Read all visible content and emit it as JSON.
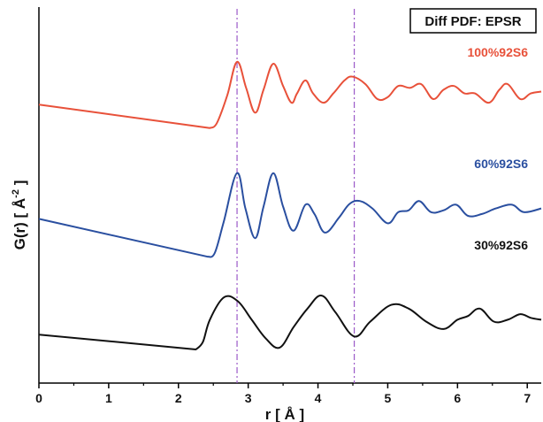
{
  "chart_data": {
    "type": "line",
    "title": "Diff PDF: EPSR",
    "xlabel_parts": {
      "main": "r [ Å ]"
    },
    "ylabel_parts": {
      "main": "G(r) [ Å",
      "sup": "-2",
      "end": " ]"
    },
    "xlim": [
      0,
      7.2
    ],
    "x_ticks": [
      0,
      1,
      2,
      3,
      4,
      5,
      6,
      7
    ],
    "grid": false,
    "vlines": [
      2.84,
      4.52
    ],
    "vline_color": "#9b59c8",
    "series": [
      {
        "name": "100%92S6",
        "color": "#e8513a",
        "points": [
          [
            0,
            0.6
          ],
          [
            2.45,
            1.23
          ],
          [
            2.55,
            1.1
          ],
          [
            2.7,
            0.35
          ],
          [
            2.84,
            -0.55
          ],
          [
            2.97,
            0.15
          ],
          [
            3.1,
            0.82
          ],
          [
            3.22,
            0.2
          ],
          [
            3.36,
            -0.5
          ],
          [
            3.5,
            0.1
          ],
          [
            3.62,
            0.55
          ],
          [
            3.7,
            0.3
          ],
          [
            3.82,
            -0.05
          ],
          [
            3.93,
            0.3
          ],
          [
            4.08,
            0.55
          ],
          [
            4.22,
            0.3
          ],
          [
            4.38,
            -0.05
          ],
          [
            4.5,
            -0.15
          ],
          [
            4.68,
            0.05
          ],
          [
            4.85,
            0.45
          ],
          [
            5.0,
            0.4
          ],
          [
            5.15,
            0.1
          ],
          [
            5.32,
            0.15
          ],
          [
            5.48,
            0.05
          ],
          [
            5.65,
            0.45
          ],
          [
            5.8,
            0.2
          ],
          [
            5.95,
            0.1
          ],
          [
            6.1,
            0.3
          ],
          [
            6.25,
            0.3
          ],
          [
            6.45,
            0.55
          ],
          [
            6.6,
            0.2
          ],
          [
            6.72,
            0.05
          ],
          [
            6.9,
            0.45
          ],
          [
            7.05,
            0.3
          ],
          [
            7.2,
            0.25
          ]
        ]
      },
      {
        "name": "60%92S6",
        "color": "#2a4fa0",
        "points": [
          [
            0,
            0.58
          ],
          [
            2.42,
            1.6
          ],
          [
            2.52,
            1.5
          ],
          [
            2.65,
            0.65
          ],
          [
            2.84,
            -0.65
          ],
          [
            2.96,
            0.3
          ],
          [
            3.1,
            1.1
          ],
          [
            3.22,
            0.25
          ],
          [
            3.36,
            -0.65
          ],
          [
            3.5,
            0.25
          ],
          [
            3.65,
            0.9
          ],
          [
            3.82,
            0.2
          ],
          [
            3.95,
            0.45
          ],
          [
            4.1,
            0.95
          ],
          [
            4.3,
            0.55
          ],
          [
            4.45,
            0.18
          ],
          [
            4.6,
            0.1
          ],
          [
            4.78,
            0.3
          ],
          [
            5.0,
            0.7
          ],
          [
            5.15,
            0.4
          ],
          [
            5.3,
            0.35
          ],
          [
            5.45,
            0.1
          ],
          [
            5.62,
            0.4
          ],
          [
            5.8,
            0.35
          ],
          [
            5.98,
            0.2
          ],
          [
            6.15,
            0.5
          ],
          [
            6.35,
            0.45
          ],
          [
            6.55,
            0.3
          ],
          [
            6.78,
            0.2
          ],
          [
            6.95,
            0.4
          ],
          [
            7.2,
            0.3
          ]
        ]
      },
      {
        "name": "30%92S6",
        "color": "#111111",
        "points": [
          [
            0,
            0.6
          ],
          [
            2.25,
            1.0
          ],
          [
            2.35,
            0.8
          ],
          [
            2.45,
            0.2
          ],
          [
            2.65,
            -0.4
          ],
          [
            2.85,
            -0.3
          ],
          [
            3.05,
            0.2
          ],
          [
            3.25,
            0.7
          ],
          [
            3.45,
            0.95
          ],
          [
            3.65,
            0.4
          ],
          [
            3.85,
            -0.1
          ],
          [
            4.05,
            -0.45
          ],
          [
            4.25,
            0.0
          ],
          [
            4.52,
            0.65
          ],
          [
            4.75,
            0.25
          ],
          [
            5.05,
            -0.2
          ],
          [
            5.3,
            -0.1
          ],
          [
            5.55,
            0.25
          ],
          [
            5.8,
            0.45
          ],
          [
            6.0,
            0.2
          ],
          [
            6.15,
            0.1
          ],
          [
            6.32,
            -0.1
          ],
          [
            6.52,
            0.25
          ],
          [
            6.72,
            0.2
          ],
          [
            6.9,
            0.05
          ],
          [
            7.05,
            0.15
          ],
          [
            7.2,
            0.2
          ]
        ]
      }
    ]
  }
}
